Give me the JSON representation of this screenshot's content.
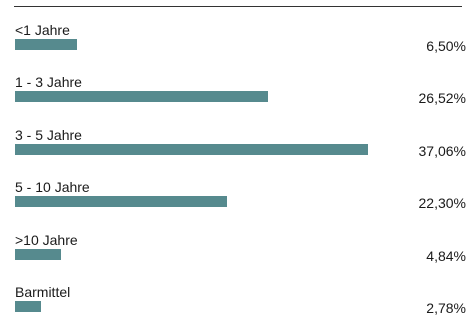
{
  "chart_data": {
    "type": "bar",
    "orientation": "horizontal",
    "categories": [
      "<1 Jahre",
      "1 - 3 Jahre",
      "3 - 5 Jahre",
      "5 - 10 Jahre",
      ">10 Jahre",
      "Barmittel"
    ],
    "values": [
      6.5,
      26.52,
      37.06,
      22.3,
      4.84,
      2.78
    ],
    "value_labels": [
      "6,50%",
      "26,52%",
      "37,06%",
      "22,30%",
      "4,84%",
      "2,78%"
    ],
    "unit": "%",
    "grid": false,
    "legend": "none",
    "bar_color": "#568a8e"
  }
}
